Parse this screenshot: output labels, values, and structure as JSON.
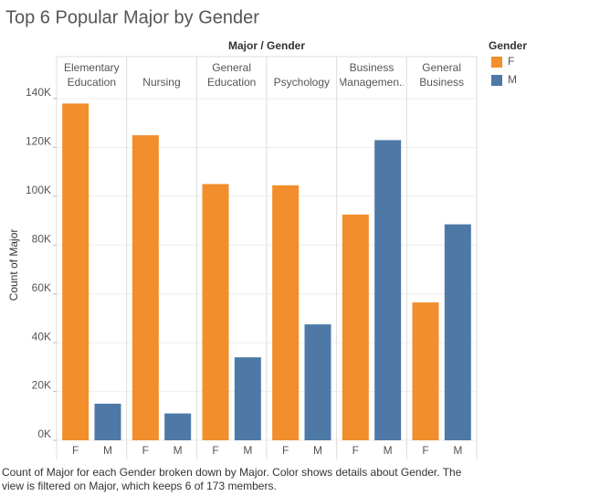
{
  "chart_data": {
    "type": "bar",
    "title": "Top 6 Popular Major by Gender",
    "header": "Major / Gender",
    "y_label": "Count of Major",
    "legend_title": "Gender",
    "legend_position": "right",
    "grid": true,
    "categories": [
      "Elementary Education",
      "Nursing",
      "General Education",
      "Psychology",
      "Business Managemen..",
      "General Business"
    ],
    "series": [
      {
        "name": "F",
        "color": "#f28e2b",
        "values": [
          138000,
          125000,
          105000,
          104500,
          92500,
          56500
        ]
      },
      {
        "name": "M",
        "color": "#4e79a7",
        "values": [
          15000,
          11000,
          34000,
          47500,
          123000,
          88500
        ]
      }
    ],
    "ylim": [
      0,
      143000
    ],
    "yticks": [
      {
        "value": 0,
        "label": "0K"
      },
      {
        "value": 20000,
        "label": "20K"
      },
      {
        "value": 40000,
        "label": "40K"
      },
      {
        "value": 60000,
        "label": "60K"
      },
      {
        "value": 80000,
        "label": "80K"
      },
      {
        "value": 100000,
        "label": "100K"
      },
      {
        "value": 120000,
        "label": "120K"
      },
      {
        "value": 140000,
        "label": "140K"
      }
    ],
    "caption": "Count of Major for each Gender broken down by Major.  Color shows details about Gender. The view is filtered on Major, which keeps 6 of 173 members."
  }
}
